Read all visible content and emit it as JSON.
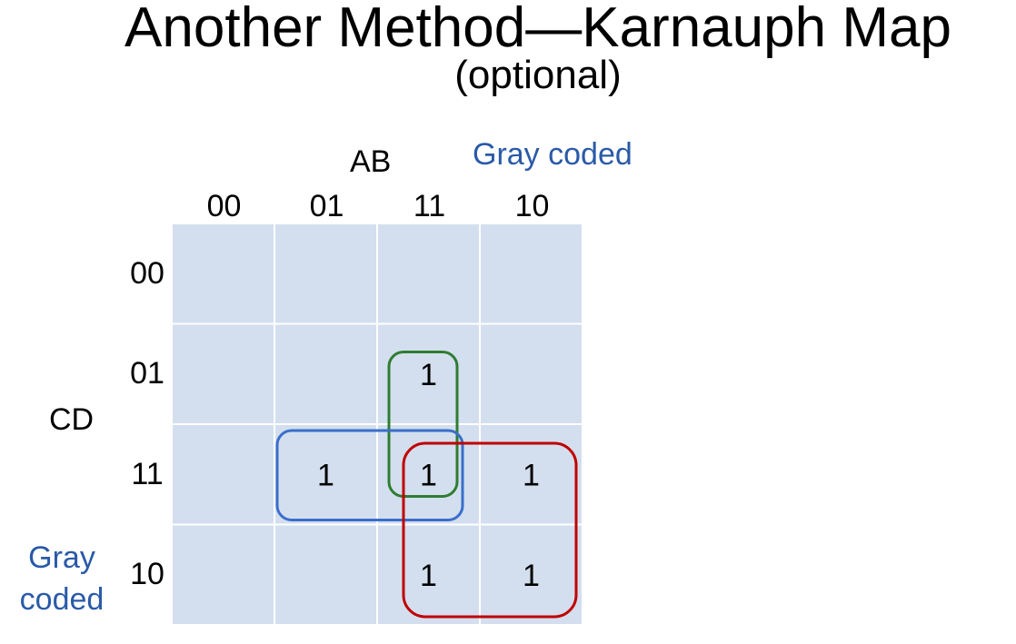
{
  "title": "Another Method—Karnauph Map",
  "subtitle": "(optional)",
  "column_variables": "AB",
  "row_variables": "CD",
  "column_code_note": "Gray coded",
  "row_code_note_line1": "Gray",
  "row_code_note_line2": "coded",
  "column_headers": [
    "00",
    "01",
    "11",
    "10"
  ],
  "row_headers": [
    "00",
    "01",
    "11",
    "10"
  ],
  "cells": [
    [
      "",
      "",
      "",
      ""
    ],
    [
      "",
      "",
      "1",
      ""
    ],
    [
      "",
      "1",
      "1",
      "1"
    ],
    [
      "",
      "",
      "1",
      "1"
    ]
  ],
  "groups": [
    {
      "color": "#2f7d32",
      "cells": [
        [
          1,
          2
        ],
        [
          2,
          2
        ]
      ]
    },
    {
      "color": "#3a6fcb",
      "cells": [
        [
          2,
          1
        ],
        [
          2,
          2
        ]
      ]
    },
    {
      "color": "#c00000",
      "cells": [
        [
          2,
          2
        ],
        [
          2,
          3
        ],
        [
          3,
          2
        ],
        [
          3,
          3
        ]
      ]
    }
  ],
  "colors": {
    "cell_fill": "#d3dfee",
    "grid_line": "#ffffff",
    "note_text": "#2a5aa8"
  }
}
